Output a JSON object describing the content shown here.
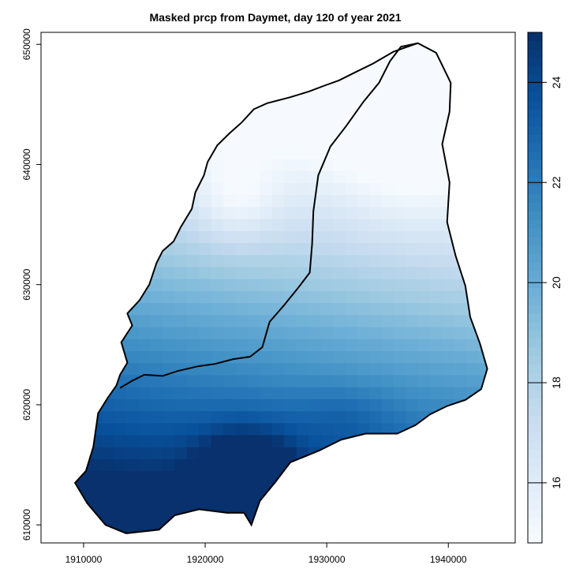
{
  "chart_data": {
    "type": "heatmap",
    "title": "Masked prcp from Daymet, day 120 of year 2021",
    "xlabel": "",
    "ylabel": "",
    "xlim": [
      1906500,
      1945500
    ],
    "ylim": [
      608500,
      651000
    ],
    "x_ticks": [
      {
        "value": 1910000,
        "label": "1910000"
      },
      {
        "value": 1920000,
        "label": "1920000"
      },
      {
        "value": 1930000,
        "label": "1930000"
      },
      {
        "value": 1940000,
        "label": "1940000"
      }
    ],
    "y_ticks": [
      {
        "value": 610000,
        "label": "610000"
      },
      {
        "value": 620000,
        "label": "620000"
      },
      {
        "value": 630000,
        "label": "630000"
      },
      {
        "value": 640000,
        "label": "640000"
      },
      {
        "value": 650000,
        "label": "650000"
      }
    ],
    "colorbar": {
      "range": [
        14.8,
        25.0
      ],
      "ticks": [
        {
          "value": 16,
          "label": "16"
        },
        {
          "value": 18,
          "label": "18"
        },
        {
          "value": 20,
          "label": "20"
        },
        {
          "value": 22,
          "label": "22"
        },
        {
          "value": 24,
          "label": "24"
        }
      ],
      "palette": [
        "#f7fbff",
        "#deebf7",
        "#c6dbef",
        "#9ecae1",
        "#6baed6",
        "#4292c6",
        "#2171b5",
        "#08519c",
        "#08306b"
      ]
    },
    "grid": false,
    "legend": "right"
  }
}
